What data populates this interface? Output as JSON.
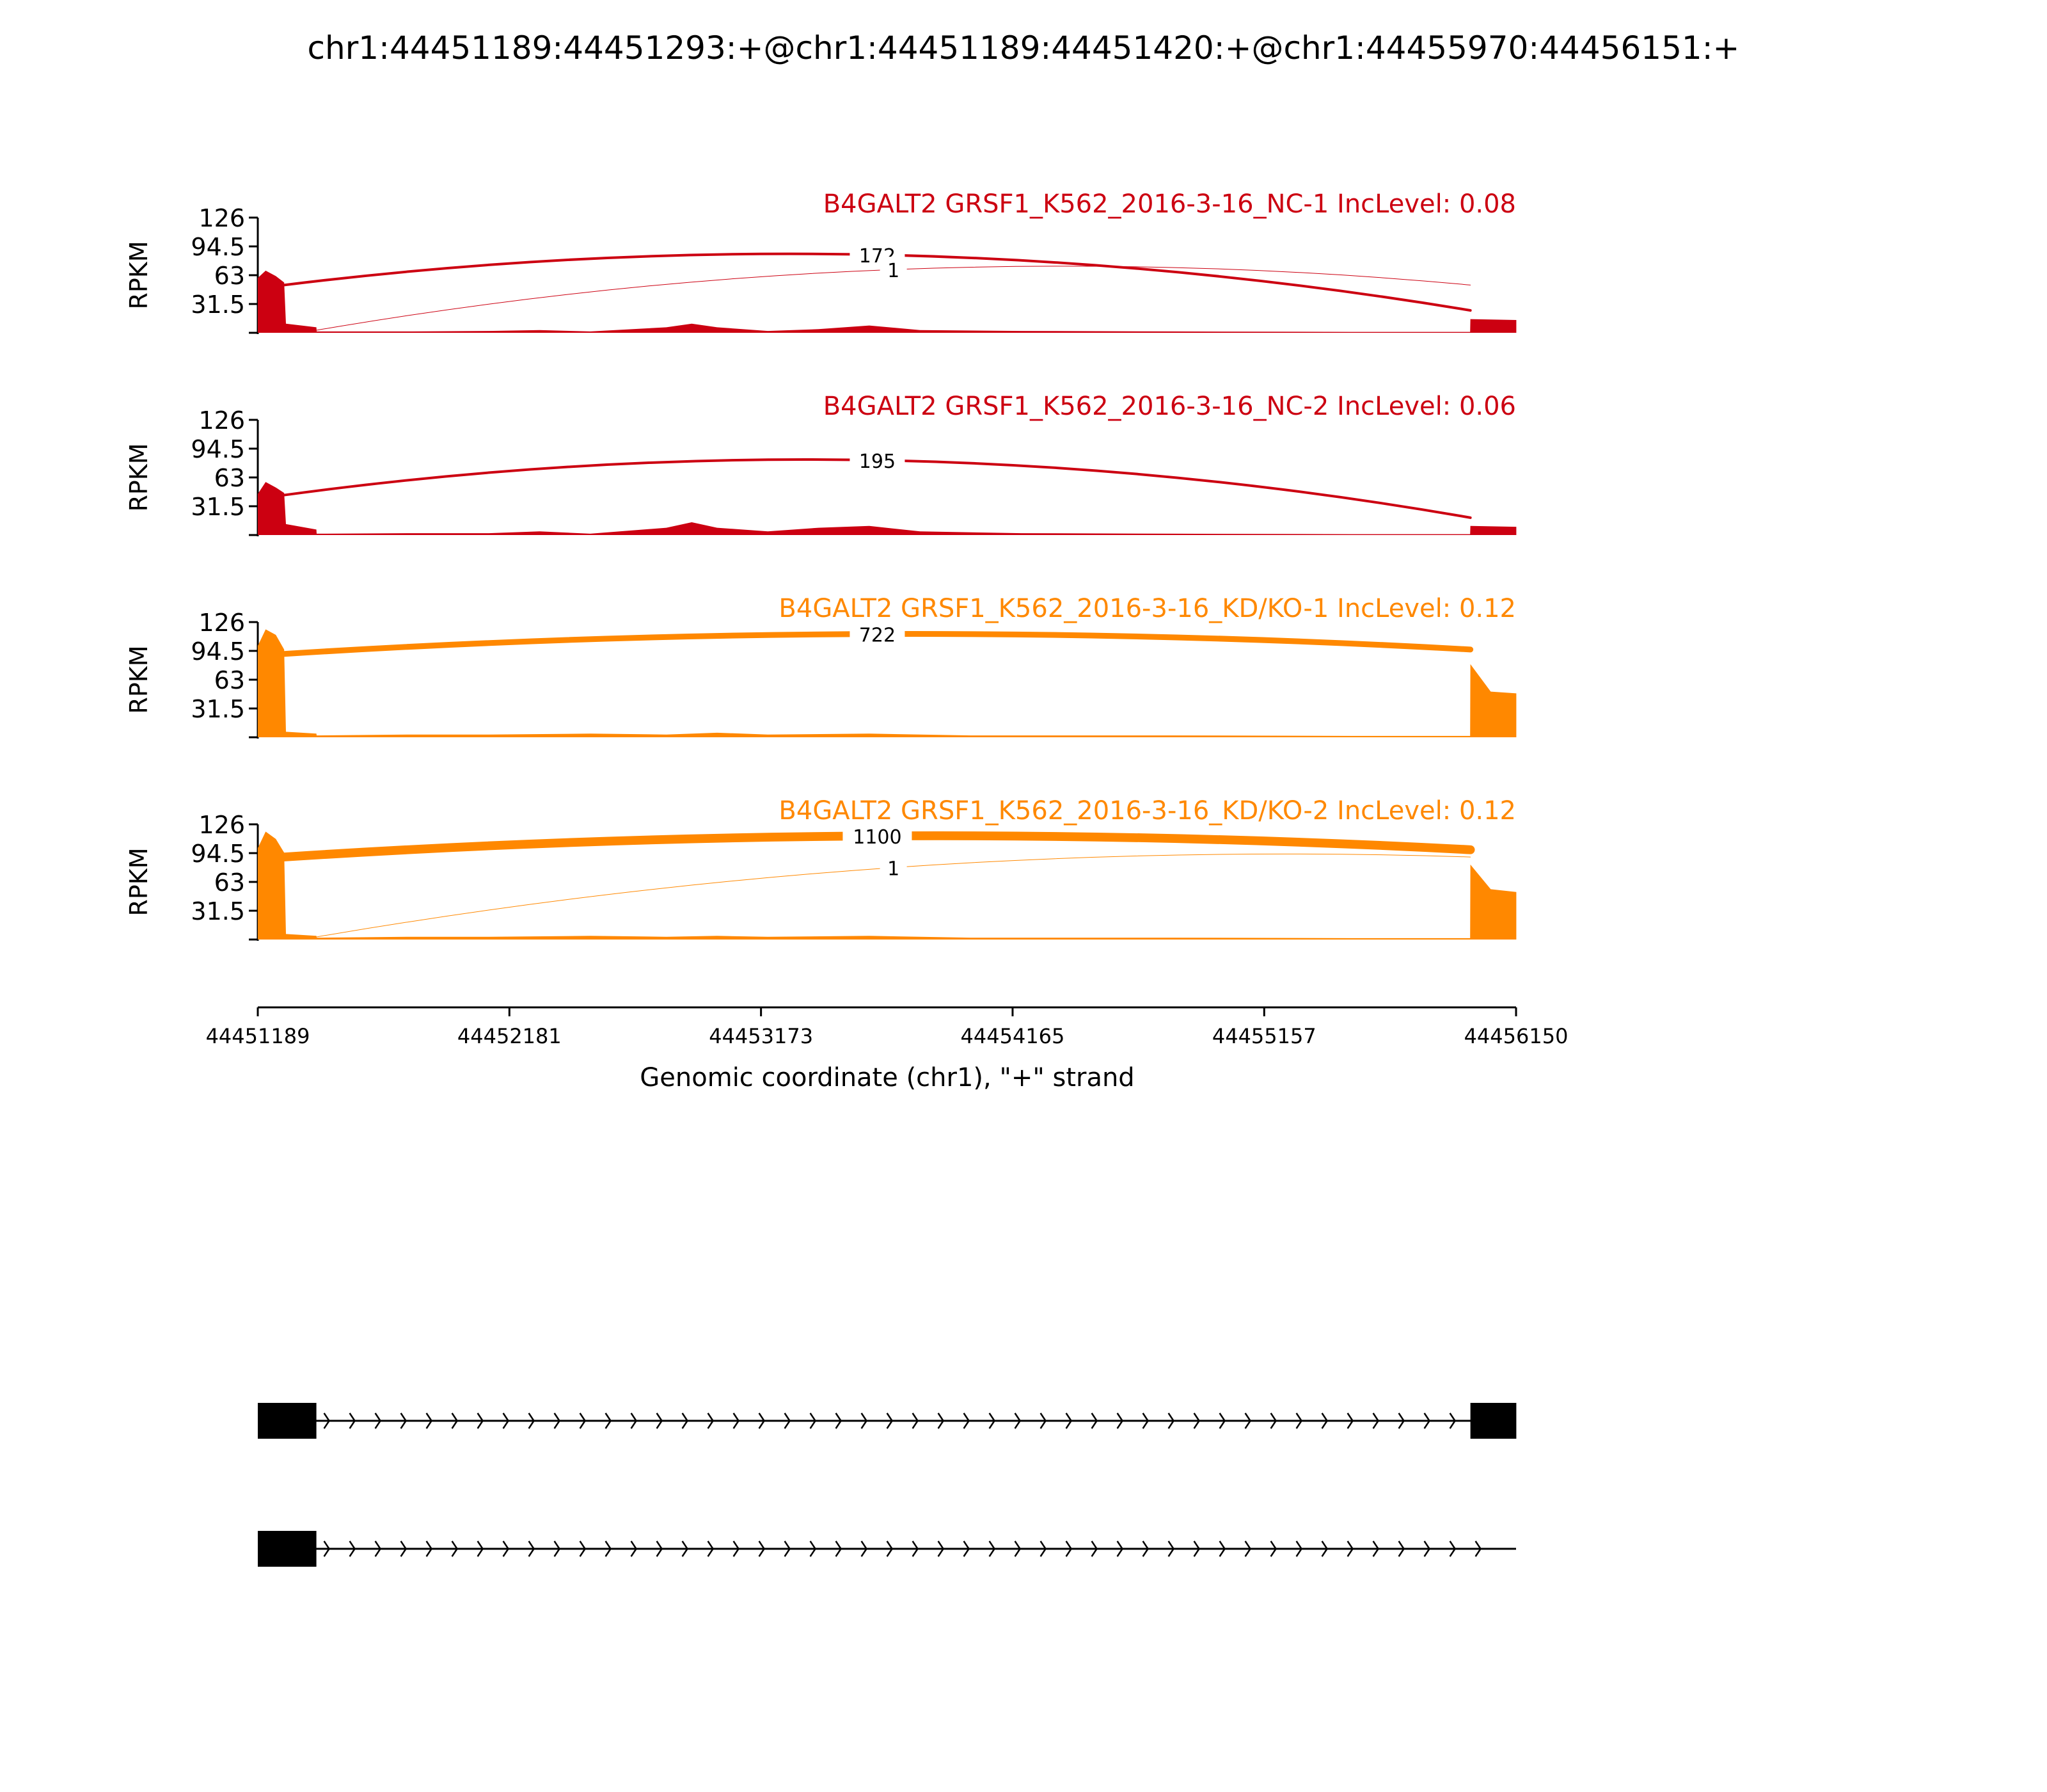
{
  "figure": {
    "title": "chr1:44451189:44451293:+@chr1:44451189:44451420:+@chr1:44455970:44456151:+",
    "y_axis_label": "RPKM",
    "x_axis_label": "Genomic coordinate (chr1), \"+\" strand"
  },
  "colors": {
    "nc": "#cc0011",
    "kd": "#ff8800",
    "axis": "#000000",
    "gene_model": "#000000"
  },
  "chart_data": {
    "type": "area",
    "xlim": [
      44451189,
      44456150
    ],
    "x_ticks": [
      44451189,
      44452181,
      44453173,
      44454165,
      44455157,
      44456150
    ],
    "ylim": [
      0,
      126
    ],
    "y_ticks": [
      31.5,
      63,
      94.5,
      126
    ],
    "grid": false,
    "series": [
      {
        "name": "B4GALT2 GRSF1_K562_2016-3-16_NC-1 IncLevel: 0.08",
        "group": "nc",
        "coverage": [
          [
            44451189,
            60
          ],
          [
            44451220,
            68
          ],
          [
            44451260,
            62
          ],
          [
            44451293,
            55
          ],
          [
            44451300,
            10
          ],
          [
            44451420,
            6
          ],
          [
            44451421,
            1.5
          ],
          [
            44451800,
            1.5
          ],
          [
            44452100,
            2
          ],
          [
            44452300,
            3
          ],
          [
            44452500,
            1.5
          ],
          [
            44452800,
            6
          ],
          [
            44452900,
            10
          ],
          [
            44453000,
            6
          ],
          [
            44453200,
            2
          ],
          [
            44453400,
            4
          ],
          [
            44453600,
            8
          ],
          [
            44453800,
            3
          ],
          [
            44454200,
            2
          ],
          [
            44454800,
            1.5
          ],
          [
            44455500,
            1
          ],
          [
            44455969,
            1
          ],
          [
            44455970,
            15
          ],
          [
            44456151,
            14
          ]
        ],
        "junctions": [
          {
            "from": 44451293,
            "to": 44455970,
            "count": "172"
          },
          {
            "from": 44451420,
            "to": 44455970,
            "count": "1"
          }
        ]
      },
      {
        "name": "B4GALT2 GRSF1_K562_2016-3-16_NC-2 IncLevel: 0.06",
        "group": "nc",
        "coverage": [
          [
            44451189,
            45
          ],
          [
            44451220,
            58
          ],
          [
            44451260,
            52
          ],
          [
            44451293,
            46
          ],
          [
            44451300,
            12
          ],
          [
            44451420,
            6
          ],
          [
            44451421,
            1.5
          ],
          [
            44451800,
            2
          ],
          [
            44452100,
            2
          ],
          [
            44452300,
            4
          ],
          [
            44452500,
            1.5
          ],
          [
            44452800,
            8
          ],
          [
            44452900,
            14
          ],
          [
            44453000,
            8
          ],
          [
            44453200,
            4
          ],
          [
            44453400,
            8
          ],
          [
            44453600,
            10
          ],
          [
            44453800,
            4
          ],
          [
            44454200,
            2
          ],
          [
            44454800,
            1.5
          ],
          [
            44455500,
            1
          ],
          [
            44455969,
            1
          ],
          [
            44455970,
            10
          ],
          [
            44456151,
            9
          ]
        ],
        "junctions": [
          {
            "from": 44451293,
            "to": 44455970,
            "count": "195"
          }
        ]
      },
      {
        "name": "B4GALT2 GRSF1_K562_2016-3-16_KD/KO-1 IncLevel: 0.12",
        "group": "kd",
        "coverage": [
          [
            44451189,
            100
          ],
          [
            44451220,
            118
          ],
          [
            44451260,
            112
          ],
          [
            44451293,
            96
          ],
          [
            44451300,
            6
          ],
          [
            44451420,
            4
          ],
          [
            44451421,
            2
          ],
          [
            44451800,
            3
          ],
          [
            44452100,
            3
          ],
          [
            44452500,
            4
          ],
          [
            44452800,
            3
          ],
          [
            44453000,
            5
          ],
          [
            44453200,
            3
          ],
          [
            44453600,
            4
          ],
          [
            44454000,
            2
          ],
          [
            44454800,
            2
          ],
          [
            44455500,
            1.5
          ],
          [
            44455969,
            1.5
          ],
          [
            44455970,
            80
          ],
          [
            44456050,
            50
          ],
          [
            44456151,
            48
          ]
        ],
        "junctions": [
          {
            "from": 44451293,
            "to": 44455970,
            "count": "722"
          }
        ]
      },
      {
        "name": "B4GALT2 GRSF1_K562_2016-3-16_KD/KO-2 IncLevel: 0.12",
        "group": "kd",
        "coverage": [
          [
            44451189,
            100
          ],
          [
            44451220,
            118
          ],
          [
            44451260,
            110
          ],
          [
            44451293,
            95
          ],
          [
            44451300,
            6
          ],
          [
            44451420,
            4
          ],
          [
            44451421,
            2
          ],
          [
            44451800,
            3
          ],
          [
            44452100,
            3
          ],
          [
            44452500,
            4
          ],
          [
            44452800,
            3
          ],
          [
            44453000,
            4
          ],
          [
            44453200,
            3
          ],
          [
            44453600,
            4
          ],
          [
            44454000,
            2
          ],
          [
            44454800,
            2
          ],
          [
            44455500,
            1.5
          ],
          [
            44455969,
            1.5
          ],
          [
            44455970,
            82
          ],
          [
            44456050,
            55
          ],
          [
            44456151,
            52
          ]
        ],
        "junctions": [
          {
            "from": 44451293,
            "to": 44455970,
            "count": "1100"
          },
          {
            "from": 44451420,
            "to": 44455970,
            "count": "1"
          }
        ]
      }
    ],
    "gene_models": [
      {
        "exons": [
          [
            44451189,
            44451420
          ],
          [
            44455970,
            44456151
          ]
        ]
      },
      {
        "exons": [
          [
            44451189,
            44451420
          ]
        ]
      }
    ]
  }
}
